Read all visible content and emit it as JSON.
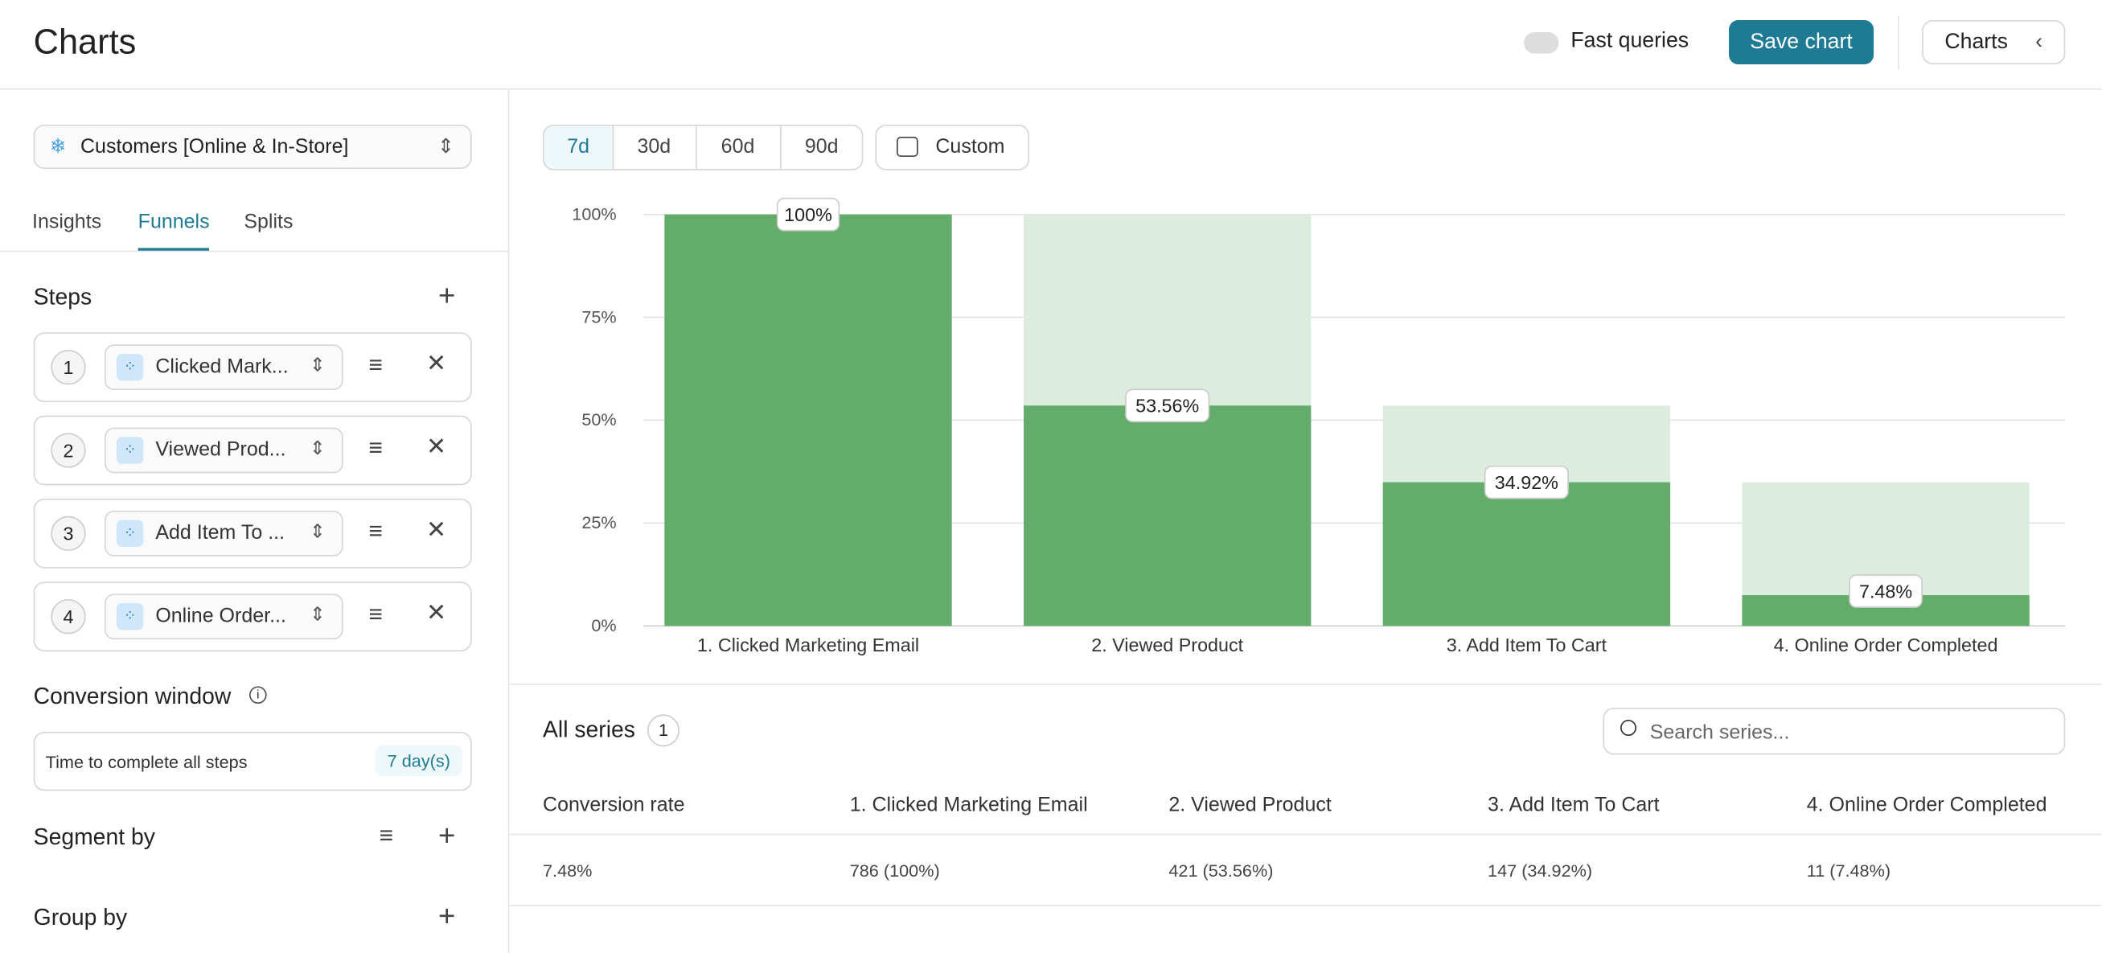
{
  "header": {
    "title": "Charts",
    "fast_queries": "Fast queries",
    "save": "Save chart",
    "charts_button": "Charts"
  },
  "sidebar": {
    "dataset": "Customers [Online & In-Store]",
    "tabs": [
      "Insights",
      "Funnels",
      "Splits"
    ],
    "steps_title": "Steps",
    "steps": [
      {
        "number": 1,
        "label": "Clicked Mark..."
      },
      {
        "number": 2,
        "label": "Viewed Prod..."
      },
      {
        "number": 3,
        "label": "Add Item To ..."
      },
      {
        "number": 4,
        "label": "Online Order..."
      }
    ],
    "conversion_window": "Conversion window",
    "conversion_text": "Time to complete all steps",
    "conversion_value": "7 day(s)",
    "segment_by": "Segment by",
    "group_by": "Group by"
  },
  "ranges": [
    "7d",
    "30d",
    "60d",
    "90d"
  ],
  "custom": "Custom",
  "chart_data": {
    "type": "funnel",
    "categories": [
      "1. Clicked Marketing Email",
      "2. Viewed Product",
      "3. Add Item To Cart",
      "4. Online Order Completed"
    ],
    "values": [
      100,
      53.56,
      34.92,
      7.48
    ],
    "value_labels": [
      "100%",
      "53.56%",
      "34.92%",
      "7.48%"
    ],
    "color": "#63ac6c",
    "dropoff_color": "#dcede0",
    "ylim": [
      0,
      100
    ],
    "yticks": [
      {
        "value": 0,
        "label": "0%"
      },
      {
        "value": 25,
        "label": "25%"
      },
      {
        "value": 50,
        "label": "50%"
      },
      {
        "value": 75,
        "label": "75%"
      },
      {
        "value": 100,
        "label": "100%"
      }
    ],
    "grid": true
  },
  "series_panel": {
    "title": "All series",
    "count": 1,
    "search": "Search series..."
  },
  "table": {
    "header": [
      "Conversion rate",
      "1. Clicked Marketing Email",
      "2. Viewed Product",
      "3. Add Item To Cart",
      "4. Online Order Completed"
    ],
    "rows": [
      [
        "7.48%",
        "786 (100%)",
        "421 (53.56%)",
        "147 (34.92%)",
        "11 (7.48%)"
      ]
    ]
  }
}
